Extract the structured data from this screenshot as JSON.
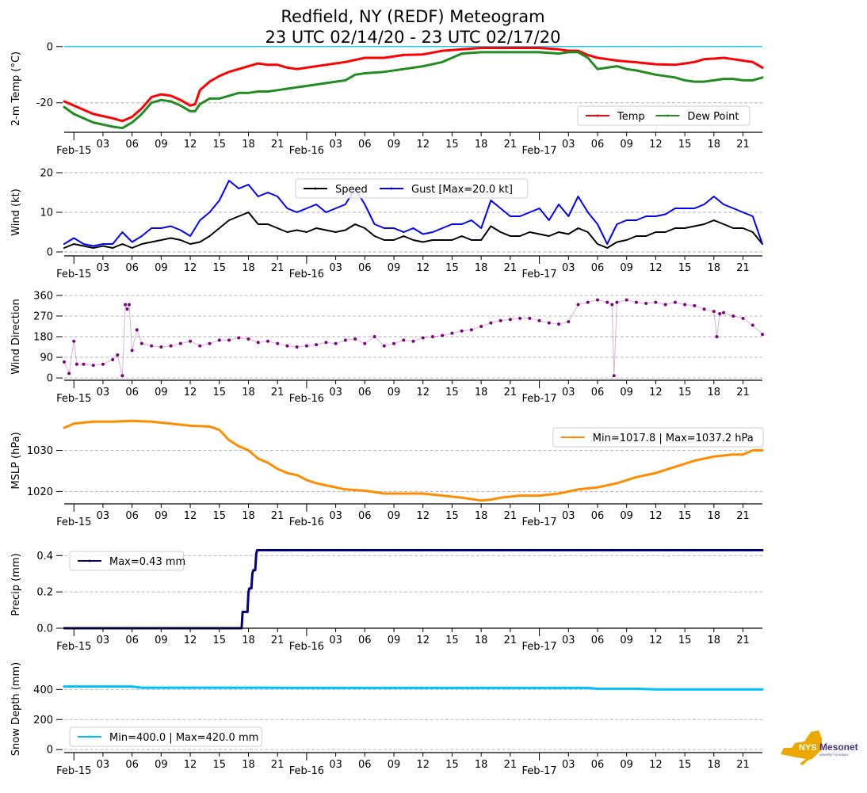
{
  "title": {
    "line1": "Redfield, NY (REDF) Meteogram",
    "line2": "23 UTC 02/14/20 - 23 UTC 02/17/20"
  },
  "logo": {
    "text_main": "NYS",
    "text_brand": "Mesonet",
    "text_sub": "UNIVERSITY AT ALBANY",
    "colors": {
      "state": "#EAA800",
      "brand": "#4B2E83"
    }
  },
  "x_axis": {
    "start_hour": -1,
    "end_hour": 71,
    "major_ticks": [
      {
        "hour": 0,
        "label": "Feb-15"
      },
      {
        "hour": 24,
        "label": "Feb-16"
      },
      {
        "hour": 48,
        "label": "Feb-17"
      }
    ],
    "minor_ticks": [
      {
        "hour": 3,
        "label": "03"
      },
      {
        "hour": 6,
        "label": "06"
      },
      {
        "hour": 9,
        "label": "09"
      },
      {
        "hour": 12,
        "label": "12"
      },
      {
        "hour": 15,
        "label": "15"
      },
      {
        "hour": 18,
        "label": "18"
      },
      {
        "hour": 21,
        "label": "21"
      },
      {
        "hour": 27,
        "label": "03"
      },
      {
        "hour": 30,
        "label": "06"
      },
      {
        "hour": 33,
        "label": "09"
      },
      {
        "hour": 36,
        "label": "12"
      },
      {
        "hour": 39,
        "label": "15"
      },
      {
        "hour": 42,
        "label": "18"
      },
      {
        "hour": 45,
        "label": "21"
      },
      {
        "hour": 51,
        "label": "03"
      },
      {
        "hour": 54,
        "label": "06"
      },
      {
        "hour": 57,
        "label": "09"
      },
      {
        "hour": 60,
        "label": "12"
      },
      {
        "hour": 63,
        "label": "15"
      },
      {
        "hour": 66,
        "label": "18"
      },
      {
        "hour": 69,
        "label": "21"
      }
    ]
  },
  "chart_data": [
    {
      "type": "line",
      "id": "temp",
      "ylabel": "2-m Temp ( $^\\circ$C)",
      "ylabel_display": "2-m Temp (°C)",
      "ylim": [
        -30.5,
        0.5
      ],
      "yticks": [
        0,
        -20
      ],
      "reference_line": {
        "y": 0,
        "color": "#00BFFF"
      },
      "legend": {
        "position": "lower-right",
        "ncol": 2
      },
      "series": [
        {
          "name": "Temp",
          "color": "#FF0000",
          "x": [
            -1,
            0,
            2,
            4,
            5,
            6,
            7,
            8,
            9,
            10,
            11,
            12,
            12.5,
            13,
            14,
            15,
            16,
            17,
            18,
            19,
            20,
            21,
            22,
            23,
            24,
            26,
            28,
            30,
            32,
            34,
            36,
            38,
            40,
            42,
            44,
            46,
            48,
            50,
            51,
            52,
            53,
            54,
            55,
            56,
            57,
            58,
            60,
            62,
            63,
            64,
            65,
            66,
            67,
            68,
            69,
            70,
            71
          ],
          "y": [
            -19.5,
            -21,
            -24,
            -25.5,
            -26.5,
            -25,
            -22,
            -18,
            -17,
            -17.5,
            -19,
            -21,
            -20.5,
            -15.5,
            -12.5,
            -10.5,
            -9,
            -8,
            -7,
            -6,
            -6.5,
            -6.5,
            -7.5,
            -8,
            -7.5,
            -6.5,
            -5.5,
            -4,
            -4,
            -3,
            -2.8,
            -1.5,
            -1,
            -0.5,
            -0.5,
            -0.5,
            -0.5,
            -1,
            -1.5,
            -1.5,
            -3,
            -4,
            -4.5,
            -5,
            -5.3,
            -5.6,
            -6.3,
            -6.5,
            -6,
            -5.5,
            -4.5,
            -4.3,
            -4,
            -4.5,
            -5,
            -5.5,
            -7.5
          ]
        },
        {
          "name": "Dew Point",
          "color": "#228B22",
          "x": [
            -1,
            0,
            2,
            4,
            5,
            6,
            7,
            8,
            9,
            10,
            11,
            12,
            12.5,
            13,
            14,
            15,
            16,
            17,
            18,
            19,
            20,
            21,
            22,
            23,
            24,
            26,
            28,
            29,
            30,
            32,
            34,
            36,
            38,
            40,
            42,
            44,
            46,
            48,
            50,
            51,
            52,
            53,
            54,
            55,
            56,
            57,
            58,
            60,
            62,
            63,
            64,
            65,
            66,
            67,
            68,
            69,
            70,
            71
          ],
          "y": [
            -21.5,
            -24,
            -27,
            -28.5,
            -29,
            -27,
            -24,
            -20,
            -19,
            -19.5,
            -21,
            -23,
            -23,
            -20.5,
            -18.5,
            -18.5,
            -17.5,
            -16.5,
            -16.5,
            -16,
            -16,
            -15.5,
            -15,
            -14.5,
            -14,
            -13,
            -12,
            -10,
            -9.5,
            -9,
            -8,
            -7,
            -5.5,
            -2.5,
            -2,
            -2,
            -2,
            -2,
            -2.5,
            -2,
            -2,
            -4,
            -8,
            -7.5,
            -7,
            -8,
            -8.5,
            -10,
            -11,
            -12,
            -12.5,
            -12.5,
            -12,
            -11.5,
            -11.5,
            -12,
            -12,
            -11
          ]
        }
      ]
    },
    {
      "type": "line",
      "id": "wind",
      "ylabel": "Wind (kt)",
      "ylim": [
        -1,
        21
      ],
      "yticks": [
        0,
        10,
        20
      ],
      "legend": {
        "position": "top-center",
        "ncol": 2
      },
      "series": [
        {
          "name": "Speed",
          "color": "#000000",
          "x": [
            -1,
            0,
            1,
            2,
            3,
            4,
            5,
            6,
            7,
            8,
            9,
            10,
            11,
            12,
            13,
            14,
            15,
            16,
            17,
            18,
            19,
            20,
            21,
            22,
            23,
            24,
            25,
            26,
            27,
            28,
            29,
            30,
            31,
            32,
            33,
            34,
            35,
            36,
            37,
            38,
            39,
            40,
            41,
            42,
            43,
            44,
            45,
            46,
            47,
            48,
            49,
            50,
            51,
            52,
            53,
            54,
            55,
            56,
            57,
            58,
            59,
            60,
            61,
            62,
            63,
            64,
            65,
            66,
            67,
            68,
            69,
            70,
            71
          ],
          "y": [
            1,
            2,
            1.5,
            1,
            1.5,
            1,
            2,
            1,
            2,
            2.5,
            3,
            3.5,
            3,
            2,
            2.5,
            4,
            6,
            8,
            9,
            10,
            7,
            7,
            6,
            5,
            5.5,
            5,
            6,
            5.5,
            5,
            5.5,
            7,
            6,
            4,
            3,
            3,
            4,
            3,
            2.5,
            3,
            3,
            3,
            4,
            3,
            3,
            6.5,
            5,
            4,
            4,
            5,
            4.5,
            4,
            5,
            4.5,
            6,
            5,
            2,
            1,
            2.5,
            3,
            4,
            4,
            5,
            5,
            6,
            6,
            6.5,
            7,
            8,
            7,
            6,
            6,
            5,
            2
          ]
        },
        {
          "name": "Gust [Max=20.0 kt]",
          "color": "#0000FF",
          "x": [
            -1,
            0,
            1,
            2,
            3,
            4,
            5,
            6,
            7,
            8,
            9,
            10,
            11,
            12,
            13,
            14,
            15,
            16,
            17,
            18,
            19,
            20,
            21,
            22,
            23,
            24,
            25,
            26,
            27,
            28,
            29,
            30,
            31,
            32,
            33,
            34,
            35,
            36,
            37,
            38,
            39,
            40,
            41,
            42,
            43,
            44,
            45,
            46,
            47,
            48,
            49,
            50,
            51,
            52,
            53,
            54,
            55,
            56,
            57,
            58,
            59,
            60,
            61,
            62,
            63,
            64,
            65,
            66,
            67,
            68,
            69,
            70,
            71
          ],
          "y": [
            2,
            3.5,
            2,
            1.5,
            2,
            2,
            5,
            2.5,
            4,
            6,
            6,
            6.5,
            5.5,
            4,
            8,
            10,
            13,
            18,
            16,
            17,
            14,
            15,
            14,
            11,
            10,
            11,
            12,
            10,
            11,
            12,
            16,
            12,
            7,
            6,
            6,
            5,
            6,
            4.5,
            5,
            6,
            7,
            7,
            8,
            6,
            13,
            11,
            9,
            9,
            10,
            11,
            8,
            12,
            9,
            14,
            10,
            7,
            2,
            7,
            8,
            8,
            9,
            9,
            9.5,
            11,
            11,
            11,
            12,
            14,
            12,
            11,
            10,
            9,
            2
          ]
        }
      ]
    },
    {
      "type": "scatter",
      "id": "wind_direction",
      "ylabel": "Wind Direction",
      "ylim": [
        -10,
        370
      ],
      "yticks": [
        0,
        90,
        180,
        270,
        360
      ],
      "connected_thin_line": true,
      "series": [
        {
          "name": "Wind Direction",
          "color": "#800080",
          "x": [
            -1,
            -0.5,
            0,
            0.3,
            1,
            2,
            3,
            4,
            4.5,
            5,
            5.3,
            5.5,
            5.7,
            6,
            6.5,
            7,
            8,
            9,
            10,
            11,
            12,
            13,
            14,
            15,
            16,
            17,
            18,
            19,
            20,
            21,
            22,
            23,
            24,
            25,
            26,
            27,
            28,
            29,
            30,
            31,
            32,
            33,
            34,
            35,
            36,
            37,
            38,
            39,
            40,
            41,
            42,
            43,
            44,
            45,
            46,
            47,
            48,
            49,
            50,
            51,
            52,
            53,
            54,
            55,
            55.5,
            55.7,
            56,
            57,
            58,
            59,
            60,
            61,
            62,
            63,
            64,
            65,
            66,
            66.3,
            66.6,
            67,
            68,
            69,
            70,
            71
          ],
          "y": [
            70,
            20,
            160,
            60,
            60,
            55,
            60,
            80,
            100,
            10,
            320,
            300,
            320,
            120,
            210,
            150,
            140,
            135,
            140,
            150,
            160,
            140,
            150,
            165,
            165,
            175,
            170,
            155,
            160,
            150,
            140,
            135,
            140,
            145,
            155,
            150,
            165,
            170,
            150,
            180,
            140,
            150,
            165,
            160,
            175,
            180,
            185,
            195,
            205,
            210,
            225,
            240,
            250,
            255,
            260,
            260,
            250,
            240,
            235,
            245,
            320,
            330,
            340,
            330,
            320,
            10,
            330,
            340,
            330,
            325,
            330,
            320,
            330,
            320,
            315,
            300,
            290,
            180,
            280,
            285,
            270,
            260,
            230,
            190
          ]
        }
      ]
    },
    {
      "type": "line",
      "id": "mslp",
      "ylabel": "MSLP (hPa)",
      "ylim": [
        1017,
        1038
      ],
      "yticks": [
        1020,
        1030
      ],
      "legend": {
        "position": "upper-right",
        "label": "Min=1017.8 | Max=1037.2 hPa"
      },
      "series": [
        {
          "name": "MSLP",
          "color": "#FF8C00",
          "x": [
            -1,
            0,
            2,
            4,
            6,
            8,
            10,
            12,
            14,
            15,
            16,
            17,
            18,
            19,
            20,
            21,
            22,
            23,
            24,
            25,
            26,
            28,
            30,
            32,
            34,
            36,
            38,
            40,
            42,
            43,
            44,
            46,
            48,
            50,
            52,
            54,
            56,
            58,
            60,
            62,
            64,
            66,
            68,
            69,
            70,
            71
          ],
          "y": [
            1035.5,
            1036.5,
            1037,
            1037,
            1037.2,
            1037,
            1036.5,
            1036,
            1035.8,
            1035,
            1032.5,
            1031,
            1030,
            1028,
            1027,
            1025.5,
            1024.5,
            1024,
            1022.8,
            1022,
            1021.5,
            1020.5,
            1020.2,
            1019.5,
            1019.5,
            1019.5,
            1019,
            1018.5,
            1017.8,
            1018,
            1018.5,
            1019,
            1019,
            1019.5,
            1020.5,
            1021,
            1022,
            1023.5,
            1024.5,
            1026,
            1027.5,
            1028.5,
            1029,
            1029,
            1030,
            1030
          ]
        }
      ]
    },
    {
      "type": "line",
      "id": "precip",
      "ylabel": "Precip (mm)",
      "ylim": [
        0,
        0.48
      ],
      "yticks": [
        0.0,
        0.2,
        0.4
      ],
      "legend": {
        "position": "upper-left",
        "label": "Max=0.43 mm"
      },
      "series": [
        {
          "name": "Precip",
          "color": "#000080",
          "x": [
            -1,
            17.3,
            17.4,
            17.9,
            18.0,
            18.1,
            18.3,
            18.4,
            18.5,
            18.7,
            18.8,
            18.9,
            71
          ],
          "y": [
            0,
            0,
            0.09,
            0.09,
            0.2,
            0.22,
            0.22,
            0.3,
            0.32,
            0.32,
            0.41,
            0.43,
            0.43
          ]
        }
      ]
    },
    {
      "type": "line",
      "id": "snow_depth",
      "ylabel": "Snow Depth (mm)",
      "ylim": [
        -20,
        560
      ],
      "yticks": [
        0,
        200,
        400
      ],
      "legend": {
        "position": "lower-left",
        "label": "Min=400.0 | Max=420.0 mm"
      },
      "series": [
        {
          "name": "Snow Depth",
          "color": "#00BFFF",
          "x": [
            -1,
            6,
            7,
            20,
            25,
            53,
            54,
            58,
            60,
            71
          ],
          "y": [
            420,
            420,
            412,
            412,
            410,
            410,
            405,
            405,
            400,
            400
          ]
        }
      ]
    }
  ]
}
